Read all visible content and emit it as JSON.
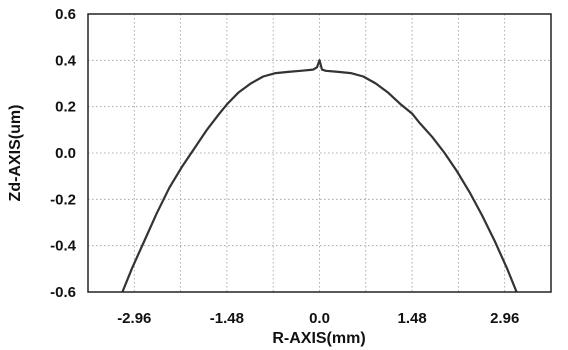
{
  "chart_data": {
    "type": "line",
    "title": "",
    "xlabel": "R-AXIS(mm)",
    "ylabel": "Zd-AXIS(um)",
    "xlim": [
      -3.7,
      3.7
    ],
    "ylim": [
      -0.6,
      0.6
    ],
    "xticks": [
      -2.96,
      -1.48,
      0.0,
      1.48,
      2.96
    ],
    "xtick_labels": [
      "-2.96",
      "-1.48",
      "0.0",
      "1.48",
      "2.96"
    ],
    "yticks": [
      0.6,
      0.4,
      0.2,
      0.0,
      -0.2,
      -0.4,
      -0.6
    ],
    "ytick_labels": [
      "0.6",
      "0.4",
      "0.2",
      "0.0",
      "-0.2",
      "-0.4",
      "-0.6"
    ],
    "grid": true,
    "legend": "none",
    "line_color": "#333333",
    "series": [
      {
        "x": [
          -3.15,
          -3.0,
          -2.8,
          -2.6,
          -2.4,
          -2.2,
          -2.0,
          -1.8,
          -1.6,
          -1.48,
          -1.3,
          -1.1,
          -0.9,
          -0.7,
          -0.5,
          -0.3,
          -0.1,
          -0.04,
          0.0,
          0.04,
          0.1,
          0.3,
          0.5,
          0.7,
          0.9,
          1.1,
          1.3,
          1.48,
          1.6,
          1.8,
          2.0,
          2.2,
          2.4,
          2.6,
          2.8,
          3.0,
          3.15
        ],
        "y": [
          -0.6,
          -0.5,
          -0.38,
          -0.26,
          -0.15,
          -0.06,
          0.02,
          0.1,
          0.17,
          0.21,
          0.26,
          0.3,
          0.33,
          0.345,
          0.35,
          0.355,
          0.36,
          0.37,
          0.4,
          0.36,
          0.355,
          0.35,
          0.345,
          0.33,
          0.3,
          0.26,
          0.21,
          0.17,
          0.13,
          0.07,
          0.0,
          -0.08,
          -0.17,
          -0.27,
          -0.38,
          -0.5,
          -0.6
        ]
      }
    ]
  }
}
